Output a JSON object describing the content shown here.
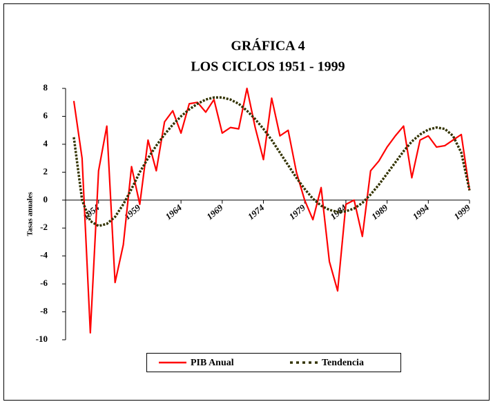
{
  "chart_data": {
    "type": "line",
    "title": [
      "GRÁFICA 4",
      "LOS CICLOS 1951 - 1999"
    ],
    "y_label": "Tasas anuales",
    "x": [
      1951,
      1952,
      1953,
      1954,
      1955,
      1956,
      1957,
      1958,
      1959,
      1960,
      1961,
      1962,
      1963,
      1964,
      1965,
      1966,
      1967,
      1968,
      1969,
      1970,
      1971,
      1972,
      1973,
      1974,
      1975,
      1976,
      1977,
      1978,
      1979,
      1980,
      1981,
      1982,
      1983,
      1984,
      1985,
      1986,
      1987,
      1988,
      1989,
      1990,
      1991,
      1992,
      1993,
      1994,
      1995,
      1996,
      1997,
      1998,
      1999
    ],
    "series": [
      {
        "name": "PIB Anual",
        "color": "#ff0000",
        "values": [
          7.1,
          3.0,
          -9.5,
          2.1,
          5.3,
          -5.9,
          -3.2,
          2.4,
          -0.3,
          4.3,
          2.1,
          5.6,
          6.4,
          4.8,
          6.9,
          7.0,
          6.3,
          7.2,
          4.8,
          5.2,
          5.1,
          8.0,
          5.2,
          2.9,
          7.3,
          4.6,
          5.0,
          2.0,
          0.0,
          -1.4,
          0.9,
          -4.4,
          -6.5,
          -0.3,
          0.0,
          -2.6,
          2.1,
          2.8,
          3.8,
          4.6,
          5.3,
          1.6,
          4.3,
          4.6,
          3.8,
          3.9,
          4.3,
          4.7,
          0.7
        ]
      },
      {
        "name": "Tendencia",
        "color": "#333300",
        "dashed": true,
        "values": [
          4.5,
          0.0,
          -1.5,
          -1.85,
          -1.7,
          -1.2,
          -0.3,
          0.8,
          2.0,
          3.0,
          3.9,
          4.7,
          5.4,
          6.0,
          6.5,
          6.9,
          7.2,
          7.35,
          7.35,
          7.2,
          6.9,
          6.4,
          5.8,
          5.1,
          4.3,
          3.4,
          2.5,
          1.6,
          0.8,
          0.1,
          -0.4,
          -0.7,
          -0.85,
          -0.8,
          -0.6,
          -0.2,
          0.4,
          1.1,
          1.9,
          2.7,
          3.5,
          4.2,
          4.7,
          5.05,
          5.2,
          5.1,
          4.6,
          3.4,
          0.7
        ]
      }
    ],
    "xlim": [
      1950,
      1999
    ],
    "xticks": [
      1954,
      1959,
      1964,
      1969,
      1974,
      1979,
      1984,
      1989,
      1994,
      1999
    ],
    "ylim": [
      -10,
      8
    ],
    "yticks": [
      -10,
      -8,
      -6,
      -4,
      -2,
      0,
      2,
      4,
      6,
      8
    ],
    "legend": "bottom"
  }
}
